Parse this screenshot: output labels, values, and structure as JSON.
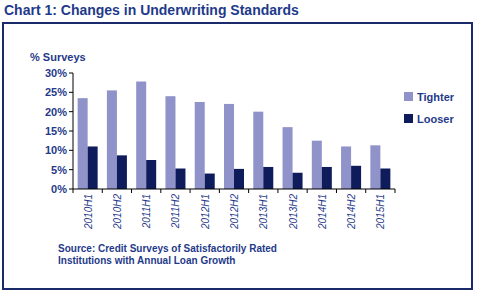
{
  "chart_data": {
    "type": "bar",
    "title": "Chart 1: Changes in Underwriting Standards",
    "y_label": "% Surveys",
    "source": "Source: Credit Surveys of Satisfactorily Rated Institutions with Annual Loan Growth",
    "categories": [
      "2010H1",
      "2010H2",
      "2011H1",
      "2011H2",
      "2012H1",
      "2012H2",
      "2013H1",
      "2013H2",
      "2014H1",
      "2014H2",
      "2015H1"
    ],
    "series": [
      {
        "name": "Tighter",
        "color": "#8f93c9",
        "values": [
          23.5,
          25.5,
          27.8,
          24,
          22.5,
          22,
          20,
          16,
          12.5,
          11,
          11.3
        ]
      },
      {
        "name": "Looser",
        "color": "#0f1c5c",
        "values": [
          11,
          8.7,
          7.5,
          5.3,
          4,
          5.2,
          5.7,
          4.2,
          5.7,
          6,
          5.3
        ]
      }
    ],
    "ylim": [
      0,
      30
    ],
    "yticks": [
      {
        "value": 0,
        "label": "0%"
      },
      {
        "value": 5,
        "label": "5%"
      },
      {
        "value": 10,
        "label": "10%"
      },
      {
        "value": 15,
        "label": "15%"
      },
      {
        "value": 20,
        "label": "20%"
      },
      {
        "value": 25,
        "label": "25%"
      },
      {
        "value": 30,
        "label": "30%"
      }
    ],
    "grid": false,
    "legend": "right"
  }
}
